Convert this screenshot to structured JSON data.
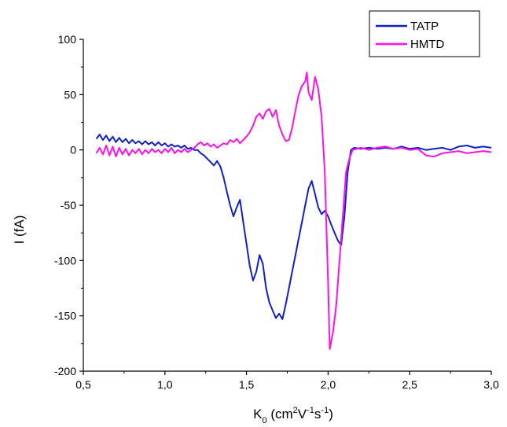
{
  "chart_data": {
    "type": "line",
    "title": "",
    "xlabel": {
      "main": "K",
      "sub": "0",
      "unit_open": " (cm",
      "sup1": "2",
      "v": "V",
      "sup2": "-1",
      "s": "s",
      "sup3": "-1",
      "unit_close": ")"
    },
    "ylabel": "I (fA)",
    "xlim": [
      0.5,
      3.0
    ],
    "ylim": [
      -200,
      100
    ],
    "x_ticks": [
      0.5,
      1.0,
      1.5,
      2.0,
      2.5,
      3.0
    ],
    "x_tick_labels": [
      "0,5",
      "1,0",
      "1,5",
      "2,0",
      "2,5",
      "3,0"
    ],
    "y_ticks": [
      -200,
      -150,
      -100,
      -50,
      0,
      50,
      100
    ],
    "y_tick_labels": [
      "-200",
      "-150",
      "-100",
      "-50",
      "0",
      "50",
      "100"
    ],
    "grid": false,
    "legend_position": "top-right",
    "series": [
      {
        "name": "TATP",
        "color": "#1020c8",
        "points": [
          [
            0.58,
            10
          ],
          [
            0.6,
            14
          ],
          [
            0.62,
            9
          ],
          [
            0.64,
            13
          ],
          [
            0.66,
            8
          ],
          [
            0.68,
            12
          ],
          [
            0.7,
            7
          ],
          [
            0.72,
            11
          ],
          [
            0.74,
            7
          ],
          [
            0.76,
            10
          ],
          [
            0.78,
            6
          ],
          [
            0.8,
            9
          ],
          [
            0.82,
            6
          ],
          [
            0.84,
            8
          ],
          [
            0.86,
            5
          ],
          [
            0.88,
            8
          ],
          [
            0.9,
            5
          ],
          [
            0.92,
            7
          ],
          [
            0.94,
            4
          ],
          [
            0.96,
            7
          ],
          [
            0.98,
            4
          ],
          [
            1.0,
            6
          ],
          [
            1.02,
            3
          ],
          [
            1.04,
            5
          ],
          [
            1.06,
            3
          ],
          [
            1.08,
            4
          ],
          [
            1.1,
            2
          ],
          [
            1.12,
            4
          ],
          [
            1.14,
            1
          ],
          [
            1.16,
            2
          ],
          [
            1.18,
            0
          ],
          [
            1.2,
            0
          ],
          [
            1.22,
            -3
          ],
          [
            1.24,
            -5
          ],
          [
            1.26,
            -8
          ],
          [
            1.28,
            -11
          ],
          [
            1.3,
            -14
          ],
          [
            1.32,
            -10
          ],
          [
            1.34,
            -15
          ],
          [
            1.36,
            -25
          ],
          [
            1.38,
            -38
          ],
          [
            1.4,
            -50
          ],
          [
            1.42,
            -60
          ],
          [
            1.44,
            -52
          ],
          [
            1.46,
            -45
          ],
          [
            1.48,
            -65
          ],
          [
            1.5,
            -85
          ],
          [
            1.52,
            -105
          ],
          [
            1.54,
            -118
          ],
          [
            1.56,
            -110
          ],
          [
            1.58,
            -95
          ],
          [
            1.6,
            -103
          ],
          [
            1.62,
            -125
          ],
          [
            1.64,
            -138
          ],
          [
            1.66,
            -145
          ],
          [
            1.68,
            -152
          ],
          [
            1.7,
            -148
          ],
          [
            1.72,
            -153
          ],
          [
            1.74,
            -140
          ],
          [
            1.76,
            -125
          ],
          [
            1.78,
            -110
          ],
          [
            1.8,
            -95
          ],
          [
            1.82,
            -80
          ],
          [
            1.84,
            -65
          ],
          [
            1.86,
            -50
          ],
          [
            1.88,
            -35
          ],
          [
            1.9,
            -28
          ],
          [
            1.92,
            -40
          ],
          [
            1.94,
            -52
          ],
          [
            1.96,
            -58
          ],
          [
            1.98,
            -55
          ],
          [
            2.0,
            -60
          ],
          [
            2.02,
            -68
          ],
          [
            2.04,
            -75
          ],
          [
            2.06,
            -82
          ],
          [
            2.08,
            -86
          ],
          [
            2.1,
            -60
          ],
          [
            2.12,
            -20
          ],
          [
            2.14,
            0
          ],
          [
            2.16,
            2
          ],
          [
            2.2,
            1
          ],
          [
            2.25,
            2
          ],
          [
            2.3,
            1
          ],
          [
            2.35,
            2
          ],
          [
            2.4,
            1
          ],
          [
            2.45,
            3
          ],
          [
            2.5,
            1
          ],
          [
            2.55,
            2
          ],
          [
            2.6,
            0
          ],
          [
            2.65,
            1
          ],
          [
            2.7,
            2
          ],
          [
            2.75,
            0
          ],
          [
            2.8,
            3
          ],
          [
            2.85,
            4
          ],
          [
            2.9,
            2
          ],
          [
            2.95,
            3
          ],
          [
            3.0,
            2
          ]
        ]
      },
      {
        "name": "HMTD",
        "color": "#ff10e8",
        "points": [
          [
            0.58,
            -3
          ],
          [
            0.6,
            2
          ],
          [
            0.62,
            -4
          ],
          [
            0.64,
            4
          ],
          [
            0.66,
            -5
          ],
          [
            0.68,
            3
          ],
          [
            0.7,
            -6
          ],
          [
            0.72,
            2
          ],
          [
            0.74,
            -4
          ],
          [
            0.76,
            1
          ],
          [
            0.78,
            -5
          ],
          [
            0.8,
            0
          ],
          [
            0.82,
            -3
          ],
          [
            0.84,
            1
          ],
          [
            0.86,
            -4
          ],
          [
            0.88,
            0
          ],
          [
            0.9,
            -3
          ],
          [
            0.92,
            1
          ],
          [
            0.94,
            -2
          ],
          [
            0.96,
            0
          ],
          [
            0.98,
            -3
          ],
          [
            1.0,
            1
          ],
          [
            1.02,
            -2
          ],
          [
            1.04,
            2
          ],
          [
            1.06,
            -3
          ],
          [
            1.08,
            0
          ],
          [
            1.1,
            -2
          ],
          [
            1.12,
            1
          ],
          [
            1.14,
            -2
          ],
          [
            1.16,
            0
          ],
          [
            1.18,
            2
          ],
          [
            1.2,
            5
          ],
          [
            1.22,
            7
          ],
          [
            1.24,
            4
          ],
          [
            1.26,
            6
          ],
          [
            1.28,
            3
          ],
          [
            1.3,
            5
          ],
          [
            1.32,
            2
          ],
          [
            1.34,
            4
          ],
          [
            1.36,
            6
          ],
          [
            1.38,
            5
          ],
          [
            1.4,
            9
          ],
          [
            1.42,
            7
          ],
          [
            1.44,
            10
          ],
          [
            1.46,
            6
          ],
          [
            1.48,
            9
          ],
          [
            1.5,
            12
          ],
          [
            1.52,
            16
          ],
          [
            1.54,
            22
          ],
          [
            1.56,
            30
          ],
          [
            1.58,
            33
          ],
          [
            1.6,
            28
          ],
          [
            1.62,
            35
          ],
          [
            1.64,
            37
          ],
          [
            1.66,
            30
          ],
          [
            1.68,
            36
          ],
          [
            1.7,
            22
          ],
          [
            1.72,
            14
          ],
          [
            1.74,
            8
          ],
          [
            1.76,
            9
          ],
          [
            1.78,
            20
          ],
          [
            1.8,
            36
          ],
          [
            1.82,
            50
          ],
          [
            1.84,
            58
          ],
          [
            1.86,
            62
          ],
          [
            1.87,
            70
          ],
          [
            1.88,
            52
          ],
          [
            1.9,
            45
          ],
          [
            1.92,
            66
          ],
          [
            1.94,
            55
          ],
          [
            1.96,
            30
          ],
          [
            1.98,
            -20
          ],
          [
            2.0,
            -120
          ],
          [
            2.01,
            -180
          ],
          [
            2.03,
            -165
          ],
          [
            2.05,
            -140
          ],
          [
            2.07,
            -100
          ],
          [
            2.09,
            -60
          ],
          [
            2.11,
            -20
          ],
          [
            2.13,
            -8
          ],
          [
            2.15,
            0
          ],
          [
            2.2,
            2
          ],
          [
            2.25,
            0
          ],
          [
            2.3,
            2
          ],
          [
            2.35,
            3
          ],
          [
            2.4,
            1
          ],
          [
            2.45,
            2
          ],
          [
            2.5,
            0
          ],
          [
            2.55,
            1
          ],
          [
            2.6,
            -5
          ],
          [
            2.65,
            -6
          ],
          [
            2.7,
            -3
          ],
          [
            2.75,
            -2
          ],
          [
            2.8,
            -1
          ],
          [
            2.85,
            -3
          ],
          [
            2.9,
            -2
          ],
          [
            2.95,
            -1
          ],
          [
            3.0,
            -2
          ]
        ]
      }
    ]
  }
}
